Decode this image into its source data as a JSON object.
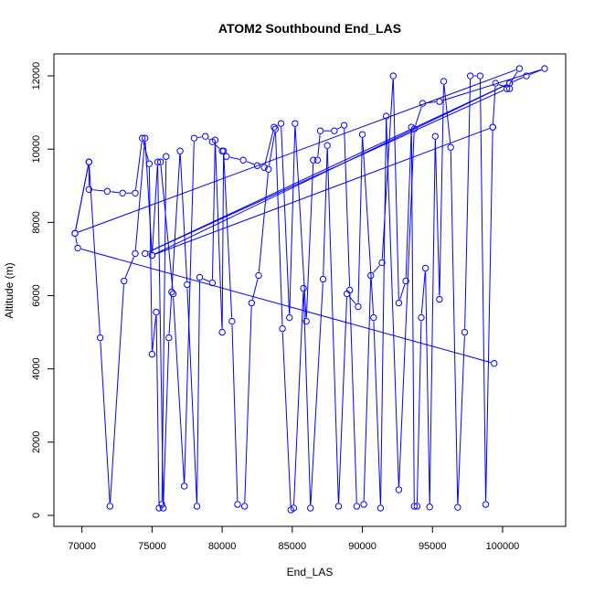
{
  "chart_data": {
    "type": "line",
    "title": "ATOM2 Southbound End_LAS",
    "xlabel": "End_LAS",
    "ylabel": "Altitude (m)",
    "xlim": [
      68000,
      104500
    ],
    "ylim": [
      -300,
      12600
    ],
    "xticks": [
      70000,
      75000,
      80000,
      85000,
      90000,
      95000,
      100000
    ],
    "yticks": [
      0,
      2000,
      4000,
      6000,
      8000,
      10000,
      12000
    ],
    "grid": false,
    "legend": "none",
    "series": [
      {
        "color": "#0000ff",
        "points": [
          [
            99400,
            4150
          ],
          [
            69700,
            7300
          ],
          [
            69500,
            7700
          ],
          [
            70500,
            9650
          ],
          [
            70500,
            8900
          ],
          [
            71800,
            8850
          ],
          [
            72900,
            8800
          ],
          [
            73800,
            8800
          ],
          [
            74300,
            10300
          ],
          [
            74800,
            9600
          ],
          [
            75000,
            4400
          ],
          [
            75300,
            5550
          ],
          [
            75500,
            200
          ],
          [
            75700,
            300
          ],
          [
            76000,
            9800
          ],
          [
            75600,
            9650
          ],
          [
            76500,
            6050
          ],
          [
            77300,
            800
          ],
          [
            78000,
            10300
          ],
          [
            78800,
            10350
          ],
          [
            79300,
            10200
          ],
          [
            80000,
            9950
          ],
          [
            80300,
            9800
          ],
          [
            81500,
            9700
          ],
          [
            82500,
            9550
          ],
          [
            83000,
            9500
          ],
          [
            83700,
            10600
          ],
          [
            84200,
            10700
          ],
          [
            84800,
            5400
          ],
          [
            85200,
            10700
          ],
          [
            86000,
            5300
          ],
          [
            86500,
            9700
          ],
          [
            86800,
            9700
          ],
          [
            87000,
            10500
          ],
          [
            88000,
            10500
          ],
          [
            88700,
            10650
          ],
          [
            89100,
            6150
          ],
          [
            89600,
            250
          ],
          [
            90100,
            300
          ],
          [
            90600,
            6550
          ],
          [
            91400,
            6900
          ],
          [
            92200,
            12000
          ],
          [
            92600,
            5800
          ],
          [
            93100,
            6400
          ],
          [
            93500,
            10600
          ],
          [
            93700,
            250
          ],
          [
            93900,
            250
          ],
          [
            94200,
            5400
          ],
          [
            94500,
            6750
          ],
          [
            94800,
            230
          ],
          [
            95200,
            10350
          ],
          [
            95500,
            5900
          ],
          [
            95800,
            11850
          ],
          [
            96300,
            10050
          ],
          [
            96800,
            220
          ],
          [
            97300,
            5000
          ],
          [
            97700,
            12000
          ],
          [
            98400,
            12000
          ],
          [
            98800,
            300
          ],
          [
            99300,
            10600
          ],
          [
            99500,
            11800
          ],
          [
            100500,
            11650
          ],
          [
            100500,
            11800
          ],
          [
            101700,
            12000
          ],
          [
            103000,
            12200
          ],
          [
            95500,
            11300
          ],
          [
            94300,
            11250
          ],
          [
            93700,
            10550
          ],
          [
            92600,
            700
          ],
          [
            91700,
            10900
          ],
          [
            91300,
            200
          ],
          [
            90800,
            5400
          ],
          [
            90000,
            10400
          ],
          [
            89700,
            5700
          ],
          [
            88900,
            6050
          ],
          [
            88300,
            250
          ],
          [
            87500,
            10100
          ],
          [
            87200,
            6450
          ],
          [
            86300,
            200
          ],
          [
            85800,
            6200
          ],
          [
            85100,
            200
          ],
          [
            84900,
            150
          ],
          [
            84300,
            5100
          ],
          [
            83800,
            10550
          ],
          [
            83300,
            9450
          ],
          [
            82600,
            6550
          ],
          [
            82100,
            5800
          ],
          [
            81600,
            250
          ],
          [
            81100,
            300
          ],
          [
            80700,
            5300
          ],
          [
            80100,
            9950
          ],
          [
            80000,
            5000
          ],
          [
            79500,
            10250
          ],
          [
            79300,
            6350
          ],
          [
            78400,
            6500
          ],
          [
            78200,
            250
          ],
          [
            77500,
            6300
          ],
          [
            77000,
            9950
          ],
          [
            76400,
            6100
          ],
          [
            76200,
            4850
          ],
          [
            75800,
            200
          ],
          [
            75400,
            9650
          ],
          [
            75000,
            7100
          ],
          [
            74500,
            10300
          ],
          [
            73800,
            7150
          ],
          [
            73000,
            6400
          ],
          [
            72000,
            250
          ],
          [
            71300,
            4850
          ],
          [
            70500,
            9650
          ],
          [
            69500,
            7700
          ],
          [
            101200,
            12200
          ],
          [
            100300,
            11650
          ],
          [
            74500,
            7150
          ],
          [
            100500,
            11800
          ],
          [
            75000,
            7100
          ],
          [
            99300,
            10600
          ]
        ]
      }
    ]
  }
}
